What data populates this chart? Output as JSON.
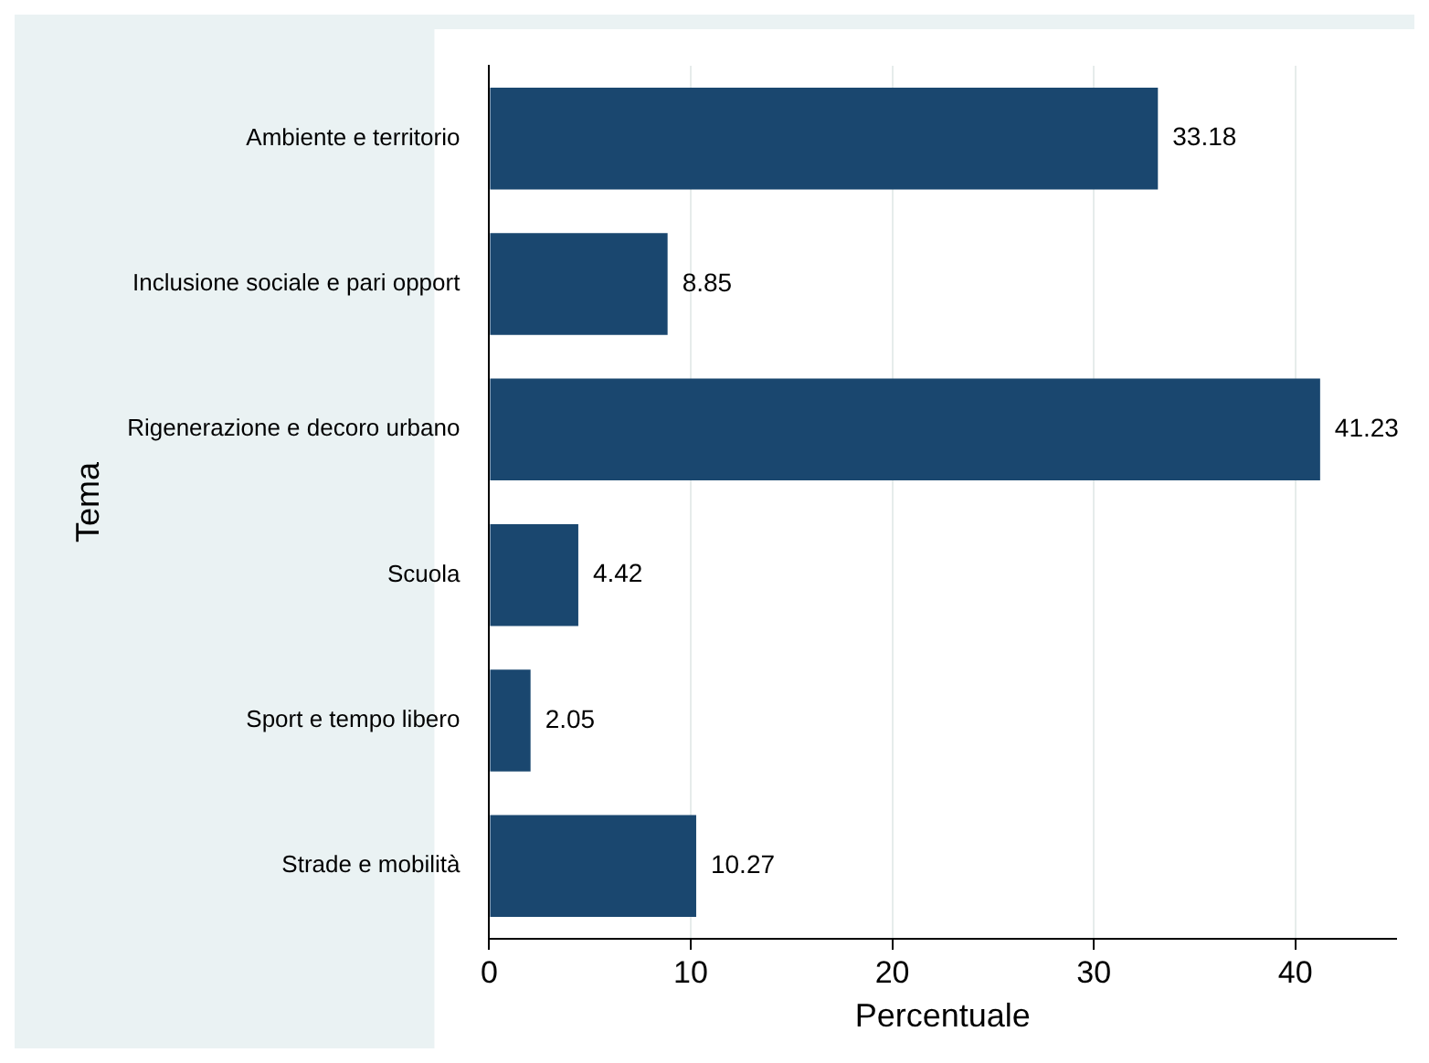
{
  "chart_data": {
    "type": "bar",
    "orientation": "horizontal",
    "xlabel": "Percentuale",
    "ylabel": "Tema",
    "categories": [
      "Ambiente e territorio",
      "Inclusione sociale e pari opport",
      "Rigenerazione e decoro urbano",
      "Scuola",
      "Sport e tempo libero",
      "Strade e mobilità"
    ],
    "values": [
      33.18,
      8.85,
      41.23,
      4.42,
      2.05,
      10.27
    ],
    "color": "#1a476f",
    "xlim": [
      0,
      45
    ],
    "xticks": [
      0,
      10,
      20,
      30,
      40
    ],
    "grid": "x",
    "data_labels": true,
    "legend": false
  }
}
